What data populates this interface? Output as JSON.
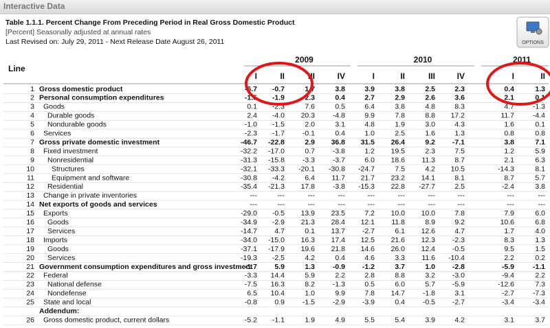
{
  "header": {
    "title": "Interactive Data"
  },
  "options": "OPTIONS",
  "table": {
    "title": "Table 1.1.1. Percent Change From Preceding Period in Real Gross Domestic Product",
    "subtitle": "[Percent] Seasonally adjusted at annual rates",
    "revised": "Last Revised on: July 29, 2011 - Next Release Date August 26, 2011",
    "line_header": "Line",
    "years": [
      "2009",
      "2010",
      "2011"
    ],
    "quarters": [
      "I",
      "II",
      "III",
      "IV",
      "I",
      "II",
      "III",
      "IV",
      "I",
      "II"
    ],
    "rows": [
      {
        "line": "1",
        "label": "Gross domestic product",
        "values": [
          "-6.7",
          "-0.7",
          "1.7",
          "3.8",
          "3.9",
          "3.8",
          "2.5",
          "2.3",
          "0.4",
          "1.3"
        ]
      },
      {
        "line": "2",
        "label": "Personal consumption expenditures",
        "values": [
          "-1.5",
          "-1.9",
          "2.3",
          "0.4",
          "2.7",
          "2.9",
          "2.6",
          "3.6",
          "2.1",
          "0.1"
        ]
      },
      {
        "line": "3",
        "label": "Goods",
        "values": [
          "0.1",
          "-2.3",
          "7.6",
          "0.5",
          "6.4",
          "3.8",
          "4.8",
          "8.3",
          "4.7",
          "-1.3"
        ]
      },
      {
        "line": "4",
        "label": "Durable goods",
        "values": [
          "2.4",
          "-4.0",
          "20.3",
          "-4.8",
          "9.9",
          "7.8",
          "8.8",
          "17.2",
          "11.7",
          "-4.4"
        ]
      },
      {
        "line": "5",
        "label": "Nondurable goods",
        "values": [
          "-1.0",
          "-1.5",
          "2.0",
          "3.1",
          "4.8",
          "1.9",
          "3.0",
          "4.3",
          "1.6",
          "0.1"
        ]
      },
      {
        "line": "6",
        "label": "Services",
        "values": [
          "-2.3",
          "-1.7",
          "-0.1",
          "0.4",
          "1.0",
          "2.5",
          "1.6",
          "1.3",
          "0.8",
          "0.8"
        ]
      },
      {
        "line": "7",
        "label": "Gross private domestic investment",
        "values": [
          "-46.7",
          "-22.8",
          "2.9",
          "36.8",
          "31.5",
          "26.4",
          "9.2",
          "-7.1",
          "3.8",
          "7.1"
        ]
      },
      {
        "line": "8",
        "label": "Fixed investment",
        "values": [
          "-32.2",
          "-17.0",
          "0.7",
          "-3.8",
          "1.2",
          "19.5",
          "2.3",
          "7.5",
          "1.2",
          "5.9"
        ]
      },
      {
        "line": "9",
        "label": "Nonresidential",
        "values": [
          "-31.3",
          "-15.8",
          "-3.3",
          "-3.7",
          "6.0",
          "18.6",
          "11.3",
          "8.7",
          "2.1",
          "6.3"
        ]
      },
      {
        "line": "10",
        "label": "Structures",
        "values": [
          "-32.1",
          "-33.3",
          "-20.1",
          "-30.8",
          "-24.7",
          "7.5",
          "4.2",
          "10.5",
          "-14.3",
          "8.1"
        ]
      },
      {
        "line": "11",
        "label": "Equipment and software",
        "values": [
          "-30.8",
          "-4.2",
          "6.4",
          "11.7",
          "21.7",
          "23.2",
          "14.1",
          "8.1",
          "8.7",
          "5.7"
        ]
      },
      {
        "line": "12",
        "label": "Residential",
        "values": [
          "-35.4",
          "-21.3",
          "17.8",
          "-3.8",
          "-15.3",
          "22.8",
          "-27.7",
          "2.5",
          "-2.4",
          "3.8"
        ]
      },
      {
        "line": "13",
        "label": "Change in private inventories",
        "values": [
          "---",
          "---",
          "---",
          "---",
          "---",
          "---",
          "---",
          "---",
          "---",
          "---"
        ]
      },
      {
        "line": "14",
        "label": "Net exports of goods and services",
        "values": [
          "---",
          "---",
          "---",
          "---",
          "---",
          "---",
          "---",
          "---",
          "---",
          "---"
        ]
      },
      {
        "line": "15",
        "label": "Exports",
        "values": [
          "-29.0",
          "-0.5",
          "13.9",
          "23.5",
          "7.2",
          "10.0",
          "10.0",
          "7.8",
          "7.9",
          "6.0"
        ]
      },
      {
        "line": "16",
        "label": "Goods",
        "values": [
          "-34.9",
          "-2.9",
          "21.3",
          "28.4",
          "12.1",
          "11.8",
          "8.9",
          "9.2",
          "10.6",
          "6.8"
        ]
      },
      {
        "line": "17",
        "label": "Services",
        "values": [
          "-14.7",
          "4.7",
          "0.1",
          "13.7",
          "-2.7",
          "6.1",
          "12.6",
          "4.7",
          "1.7",
          "4.0"
        ]
      },
      {
        "line": "18",
        "label": "Imports",
        "values": [
          "-34.0",
          "-15.0",
          "16.3",
          "17.4",
          "12.5",
          "21.6",
          "12.3",
          "-2.3",
          "8.3",
          "1.3"
        ]
      },
      {
        "line": "19",
        "label": "Goods",
        "values": [
          "-37.1",
          "-17.9",
          "19.6",
          "21.8",
          "14.6",
          "26.0",
          "12.4",
          "-0.5",
          "9.5",
          "1.5"
        ]
      },
      {
        "line": "20",
        "label": "Services",
        "values": [
          "-19.3",
          "-2.5",
          "4.2",
          "0.4",
          "4.6",
          "3.3",
          "11.6",
          "-10.4",
          "2.2",
          "0.2"
        ]
      },
      {
        "line": "21",
        "label": "Government consumption expenditures and gross investment",
        "values": [
          "-1.7",
          "5.9",
          "1.3",
          "-0.9",
          "-1.2",
          "3.7",
          "1.0",
          "-2.8",
          "-5.9",
          "-1.1"
        ]
      },
      {
        "line": "22",
        "label": "Federal",
        "values": [
          "-3.3",
          "14.4",
          "5.9",
          "2.2",
          "2.8",
          "8.8",
          "3.2",
          "-3.0",
          "-9.4",
          "2.2"
        ]
      },
      {
        "line": "23",
        "label": "National defense",
        "values": [
          "-7.5",
          "16.3",
          "8.2",
          "-1.3",
          "0.5",
          "6.0",
          "5.7",
          "-5.9",
          "-12.6",
          "7.3"
        ]
      },
      {
        "line": "24",
        "label": "Nondefense",
        "values": [
          "6.5",
          "10.4",
          "1.0",
          "9.9",
          "7.8",
          "14.7",
          "-1.8",
          "3.1",
          "-2.7",
          "-7.3"
        ]
      },
      {
        "line": "25",
        "label": "State and local",
        "values": [
          "-0.8",
          "0.9",
          "-1.5",
          "-2.9",
          "-3.9",
          "0.4",
          "-0.5",
          "-2.7",
          "-3.4",
          "-3.4"
        ]
      },
      {
        "label": "Addendum:"
      },
      {
        "line": "26",
        "label": "Gross domestic product, current dollars",
        "values": [
          "-5.2",
          "-1.1",
          "1.9",
          "4.9",
          "5.5",
          "5.4",
          "3.9",
          "4.2",
          "3.1",
          "3.7"
        ]
      }
    ]
  }
}
